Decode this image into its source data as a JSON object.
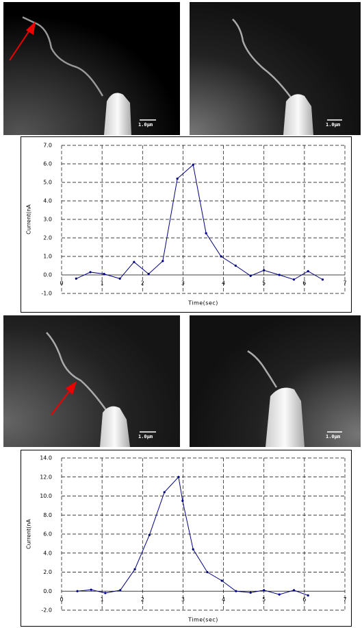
{
  "scale_bars": [
    "1.0μm",
    "1.0μm",
    "1.0μm",
    "1.0μm"
  ],
  "chart_data": [
    {
      "type": "line",
      "x_label": "Time(sec)",
      "y_label": "Current(nA",
      "x": [
        0.36,
        0.71,
        1.05,
        1.44,
        1.79,
        2.15,
        2.5,
        2.86,
        3.25,
        3.57,
        3.94,
        4.3,
        4.67,
        5.0,
        5.38,
        5.74,
        6.09,
        6.45
      ],
      "series": [
        {
          "color": "#00007f",
          "values": [
            -0.2,
            0.15,
            0.05,
            -0.2,
            0.7,
            0.05,
            0.75,
            5.2,
            5.95,
            2.25,
            1.0,
            0.5,
            -0.05,
            0.25,
            0.0,
            -0.25,
            0.2,
            -0.25
          ]
        }
      ],
      "xlim": [
        0,
        7
      ],
      "xticks": [
        0,
        1,
        2,
        3,
        4,
        5,
        6,
        7
      ],
      "ylim": [
        -1,
        7
      ],
      "yticks": [
        {
          "value": -1,
          "label": "-1.0"
        },
        {
          "value": 0,
          "label": "0.0"
        },
        {
          "value": 1,
          "label": "1.0"
        },
        {
          "value": 2,
          "label": "2.0"
        },
        {
          "value": 3,
          "label": "3.0"
        },
        {
          "value": 4,
          "label": "4.0"
        },
        {
          "value": 5,
          "label": "5.0"
        },
        {
          "value": 6,
          "label": "6.0"
        },
        {
          "value": 7,
          "label": "7.0"
        }
      ],
      "grid": true
    },
    {
      "type": "line",
      "x_label": "Time(sec)",
      "y_label": "Current(nA",
      "x": [
        0.39,
        0.73,
        1.08,
        1.45,
        1.81,
        2.17,
        2.54,
        2.89,
        2.99,
        3.25,
        3.6,
        3.96,
        4.31,
        4.67,
        5.0,
        5.38,
        5.74,
        6.09
      ],
      "series": [
        {
          "color": "#00007f",
          "values": [
            0.0,
            0.15,
            -0.2,
            0.1,
            2.3,
            5.9,
            10.4,
            12.0,
            9.5,
            4.4,
            2.0,
            1.1,
            0.0,
            -0.15,
            0.1,
            -0.35,
            0.1,
            -0.45
          ]
        }
      ],
      "xlim": [
        0,
        7
      ],
      "xticks": [
        0,
        1,
        2,
        3,
        4,
        5,
        6,
        7
      ],
      "ylim": [
        -2,
        14
      ],
      "yticks": [
        {
          "value": -2,
          "label": "-2.0"
        },
        {
          "value": 0,
          "label": "0.0"
        },
        {
          "value": 2,
          "label": "2.0"
        },
        {
          "value": 4,
          "label": "4.0"
        },
        {
          "value": 6,
          "label": "6.0"
        },
        {
          "value": 8,
          "label": "8.0"
        },
        {
          "value": 10,
          "label": "10.0"
        },
        {
          "value": 12,
          "label": "12.0"
        },
        {
          "value": 14,
          "label": "14.0"
        }
      ],
      "grid": true
    }
  ]
}
